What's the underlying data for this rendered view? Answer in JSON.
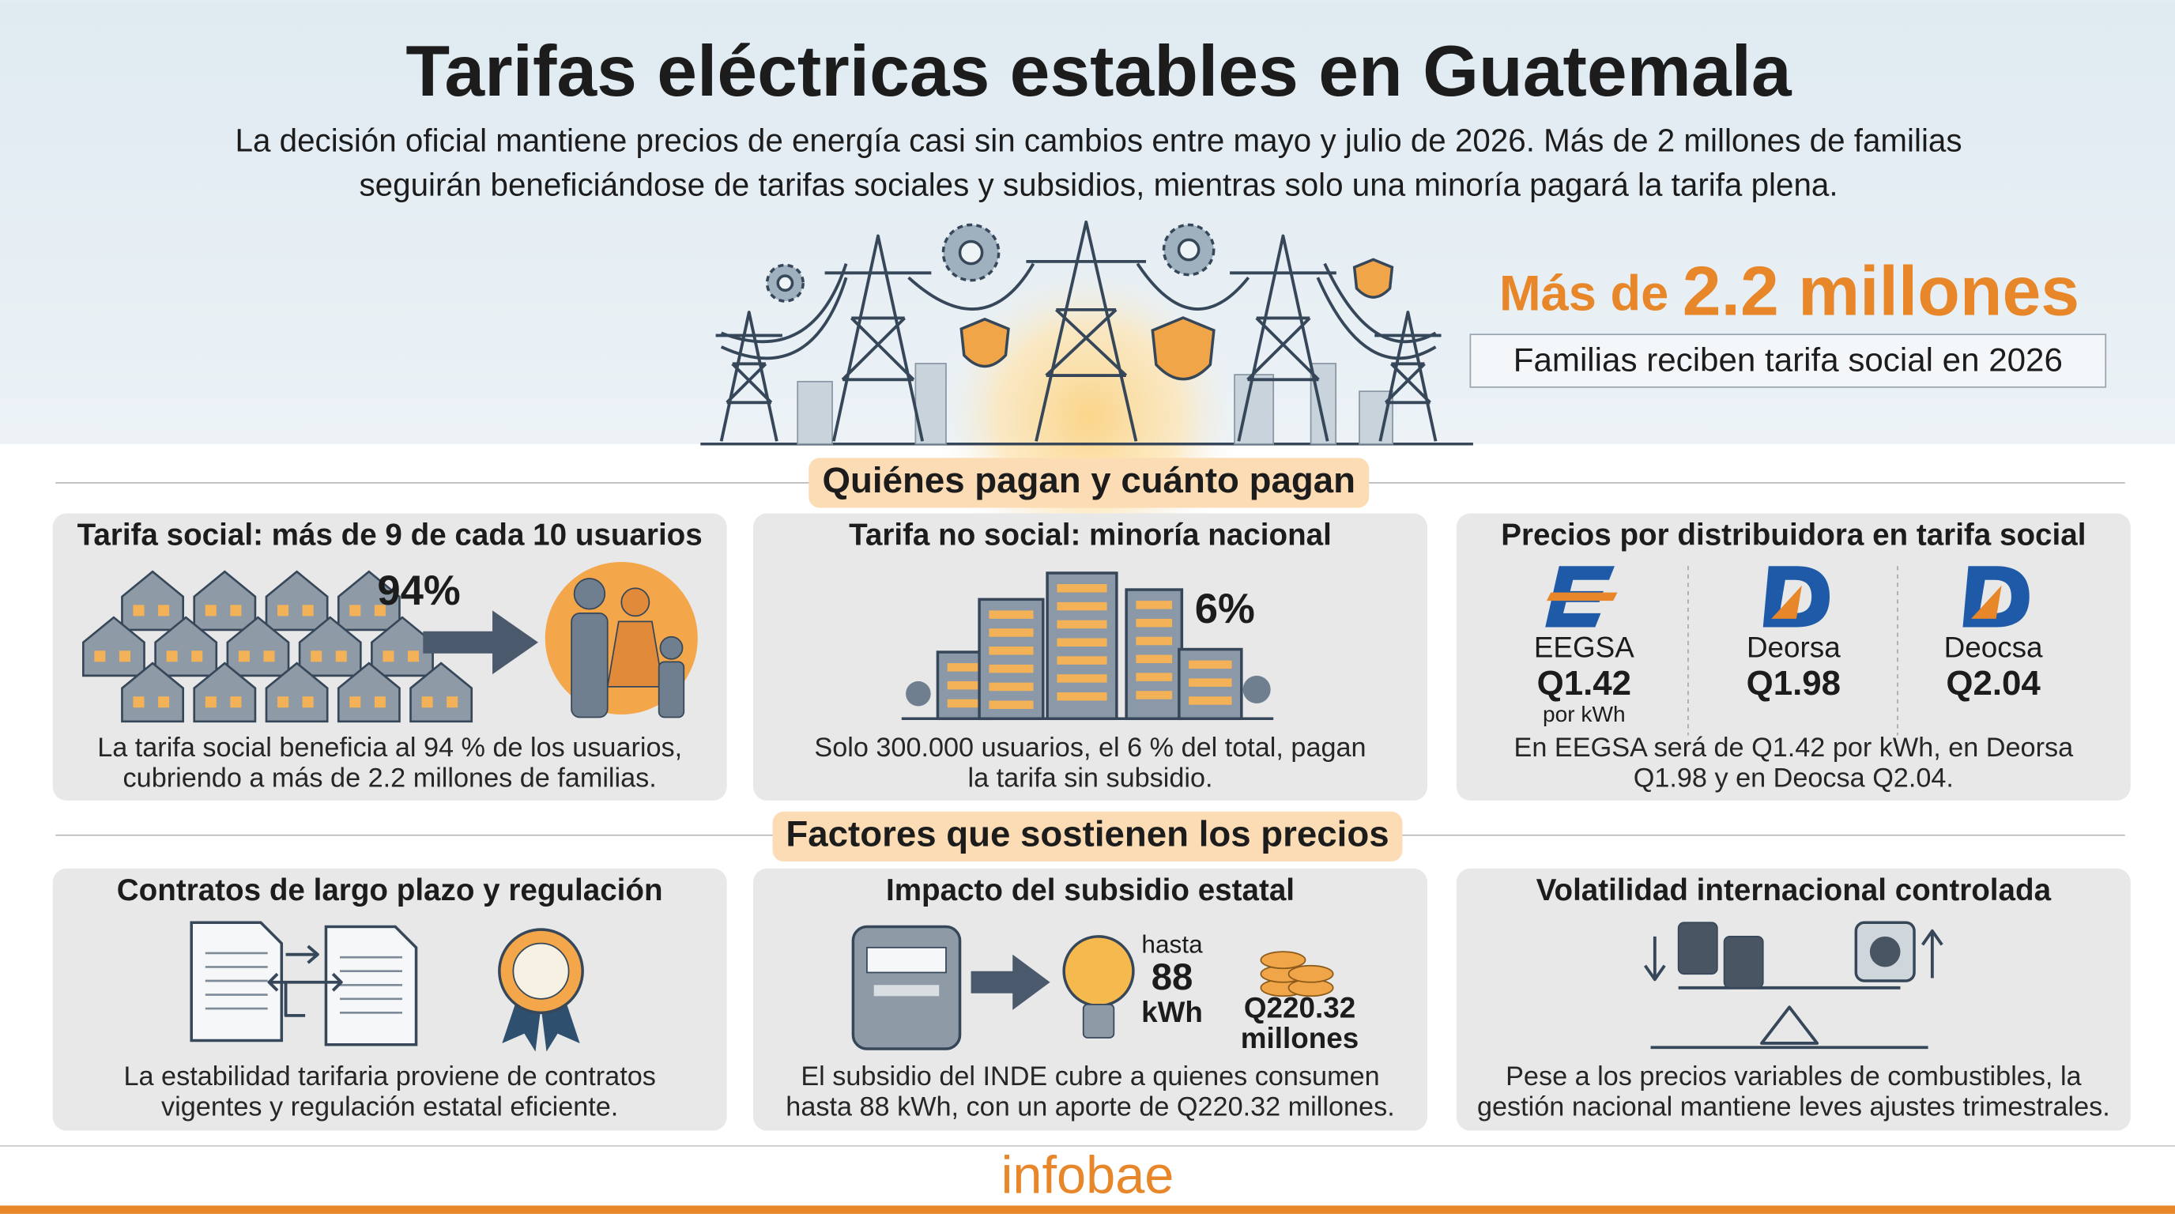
{
  "header": {
    "title": "Tarifas eléctricas estables en Guatemala",
    "subtitle": [
      "La decisión oficial mantiene precios de energía casi sin cambios entre mayo y julio de 2026. Más de 2 millones de familias",
      "seguirán beneficiándose de tarifas sociales y subsidios, mientras solo una minoría pagará la tarifa plena."
    ]
  },
  "highlight": {
    "prefix": "Más de",
    "value": "2.2 millones",
    "caption": "Familias reciben tarifa social en 2026"
  },
  "sections": [
    {
      "title": "Quiénes pagan y cuánto pagan",
      "cards": [
        {
          "title": "Tarifa social: más de 9 de cada 10 usuarios",
          "stat": "94%",
          "text": [
            "La tarifa social beneficia al 94 % de los usuarios,",
            "cubriendo a más de 2.2 millones de familias."
          ]
        },
        {
          "title": "Tarifa no social: minoría nacional",
          "stat": "6%",
          "text": [
            "Solo 300.000 usuarios, el 6 % del total, pagan",
            "la tarifa sin subsidio."
          ]
        },
        {
          "title": "Precios por distribuidora en tarifa social",
          "distributors": [
            {
              "name": "EEGSA",
              "price": "Q1.42",
              "unit": "por kWh"
            },
            {
              "name": "Deorsa",
              "price": "Q1.98"
            },
            {
              "name": "Deocsa",
              "price": "Q2.04"
            }
          ],
          "text": [
            "En EEGSA será de Q1.42 por kWh, en Deorsa",
            "Q1.98 y en Deocsa Q2.04."
          ]
        }
      ]
    },
    {
      "title": "Factores que sostienen los precios",
      "cards": [
        {
          "title": "Contratos de largo plazo y regulación",
          "text": [
            "La estabilidad tarifaria proviene de contratos",
            "vigentes y regulación estatal eficiente."
          ]
        },
        {
          "title": "Impacto del subsidio estatal",
          "limit": [
            "hasta",
            "88",
            "kWh"
          ],
          "amount": [
            "Q220.32",
            "millones"
          ],
          "text": [
            "El subsidio del INDE cubre a quienes consumen",
            "hasta 88 kWh, con un aporte de Q220.32 millones."
          ]
        },
        {
          "title": "Volatilidad internacional controlada",
          "text": [
            "Pese a los precios variables de combustibles, la",
            "gestión nacional mantiene leves ajustes trimestrales."
          ]
        }
      ]
    }
  ],
  "footer": {
    "brand": "infobae"
  }
}
